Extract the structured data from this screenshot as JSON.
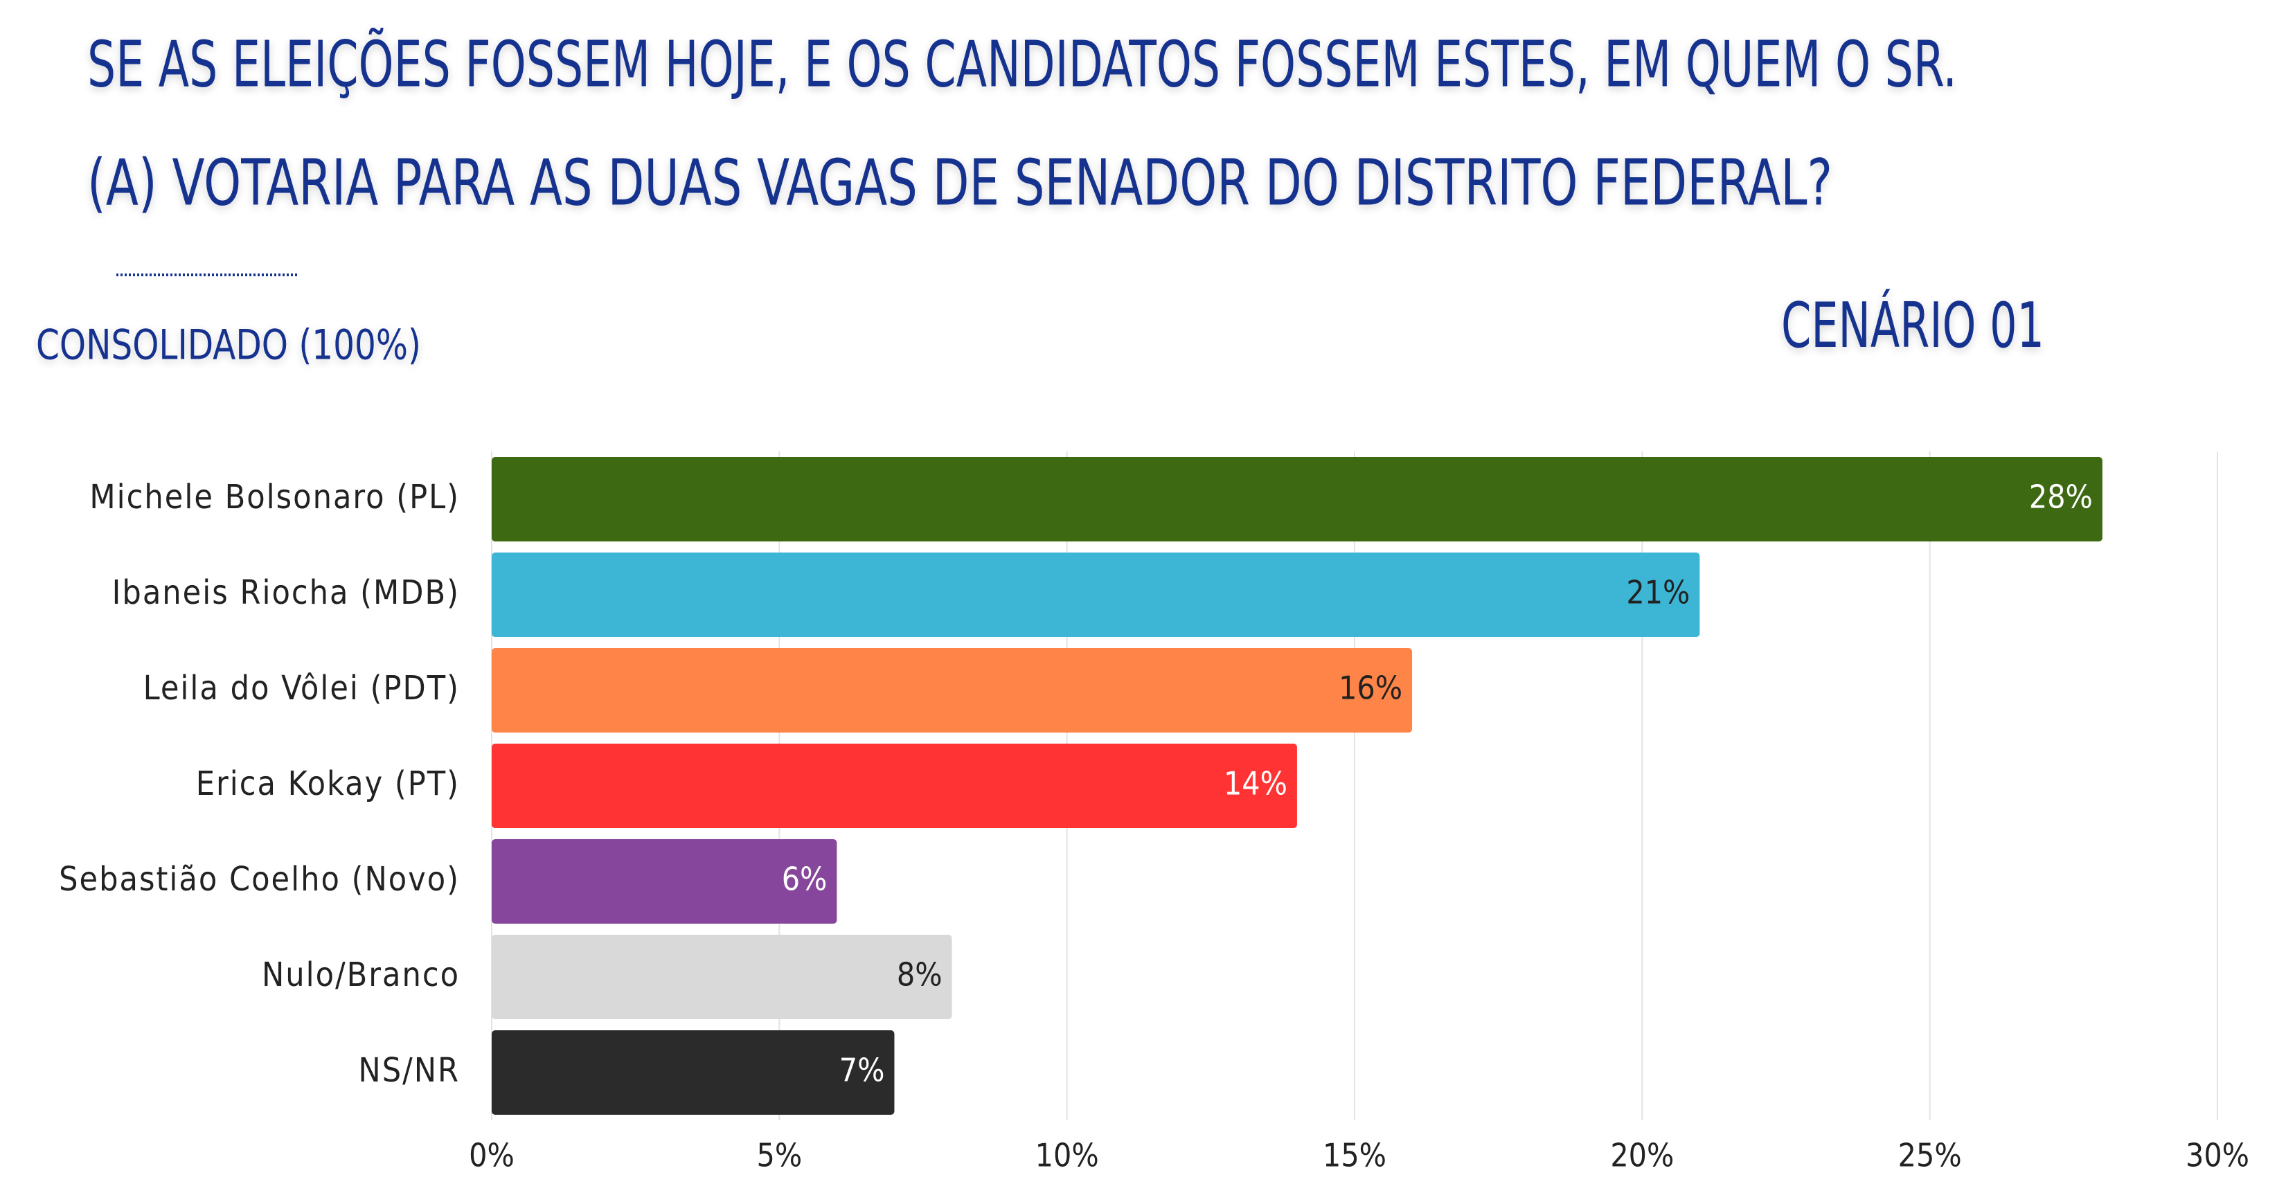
{
  "chart_data": {
    "type": "hbar",
    "title": [
      "SE AS ELEIÇÕES FOSSEM HOJE, E OS CANDIDATOS FOSSEM ESTES, EM QUEM O SR.",
      "(A) VOTARIA PARA AS DUAS VAGAS DE SENADOR DO DISTRITO FEDERAL?"
    ],
    "subtitle": "CONSOLIDADO (100%)",
    "scenario": "CENÁRIO 01",
    "categories": [
      "Michele Bolsonaro (PL)",
      "Ibaneis Riocha (MDB)",
      "Leila do Vôlei (PDT)",
      "Erica Kokay (PT)",
      "Sebastião Coelho (Novo)",
      "Nulo/Branco",
      "NS/NR"
    ],
    "values": [
      28,
      21,
      16,
      14,
      6,
      8,
      7
    ],
    "value_labels": [
      "28%",
      "21%",
      "16%",
      "14%",
      "6%",
      "8%",
      "7%"
    ],
    "colors": [
      "#3d6912",
      "#3db6d6",
      "#ff8447",
      "#ff3333",
      "#86469b",
      "#d9d9d9",
      "#2b2b2b"
    ],
    "xlim": [
      0,
      30
    ],
    "xticks": [
      {
        "value": 0,
        "label": "0%"
      },
      {
        "value": 5,
        "label": "5%"
      },
      {
        "value": 10,
        "label": "10%"
      },
      {
        "value": 15,
        "label": "15%"
      },
      {
        "value": 20,
        "label": "20%"
      },
      {
        "value": 25,
        "label": "25%"
      },
      {
        "value": 30,
        "label": "30%"
      }
    ],
    "grid": true
  }
}
